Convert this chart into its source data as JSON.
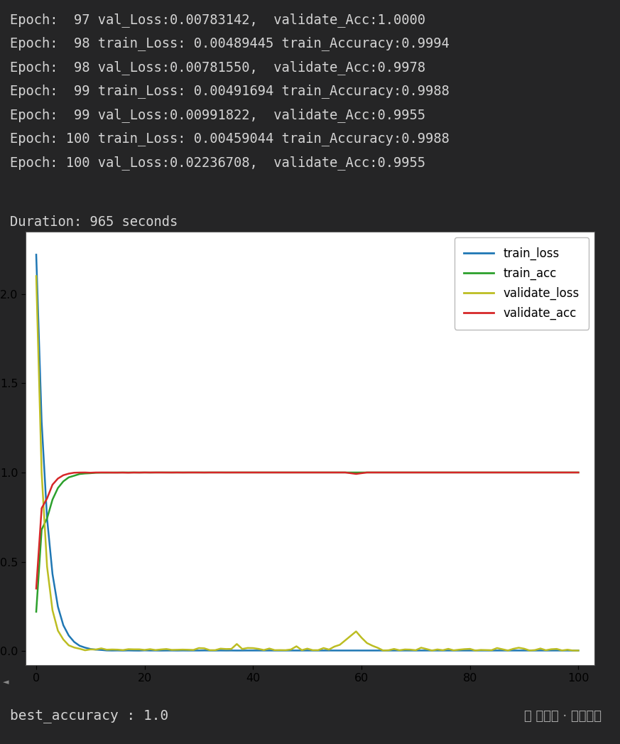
{
  "bg_color": "#252526",
  "text_color": "#d4d4d4",
  "console_text": [
    "Epoch:  97 val_Loss:0.00783142,  validate_Acc:1.0000",
    "Epoch:  98 train_Loss: 0.00489445 train_Accuracy:0.9994",
    "Epoch:  98 val_Loss:0.00781550,  validate_Acc:0.9978",
    "Epoch:  99 train_Loss: 0.00491694 train_Accuracy:0.9988",
    "Epoch:  99 val_Loss:0.00991822,  validate_Acc:0.9955",
    "Epoch: 100 train_Loss: 0.00459044 train_Accuracy:0.9988",
    "Epoch: 100 val_Loss:0.02236708,  validate_Acc:0.9955"
  ],
  "duration_text": "Duration: 965 seconds",
  "best_acc_text": "best_accuracy : 1.0",
  "watermark_text": "公众号 · 建模先锋",
  "train_loss_color": "#1f77b4",
  "train_acc_color": "#2ca02c",
  "validate_loss_color": "#bcbd22",
  "validate_acc_color": "#d62728",
  "legend_labels": [
    "train_loss",
    "train_acc",
    "validate_loss",
    "validate_acc"
  ]
}
